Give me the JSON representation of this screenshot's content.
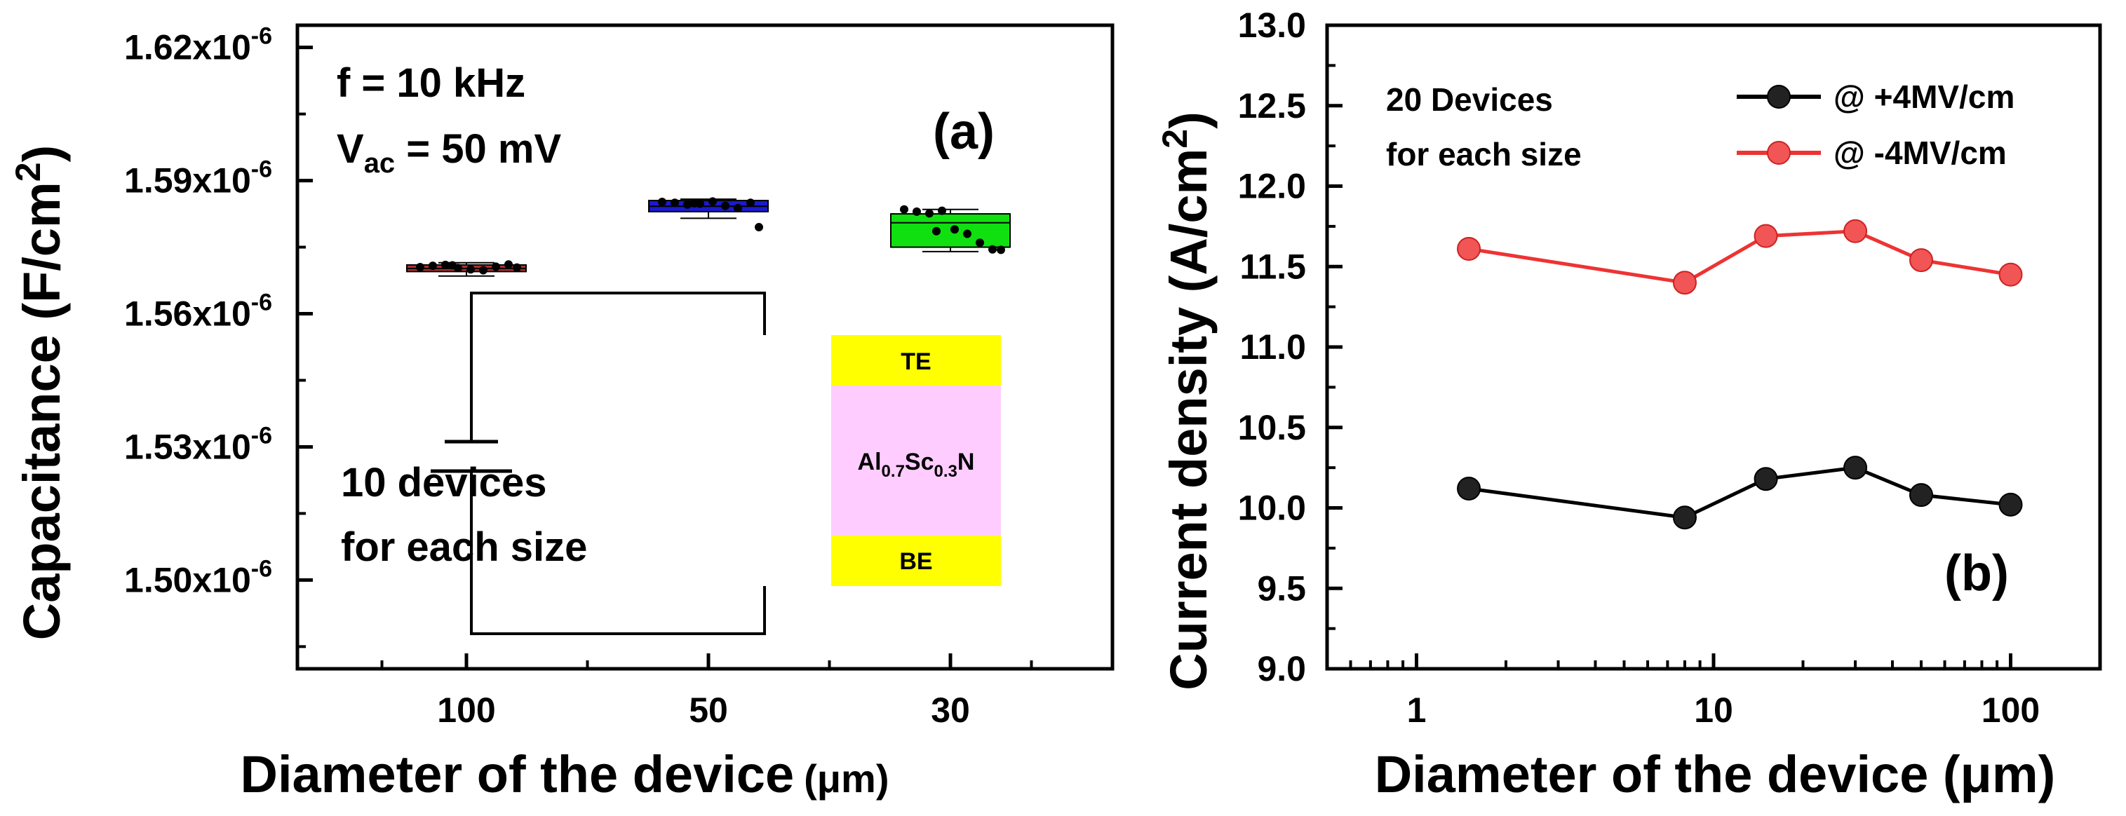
{
  "chart_data": [
    {
      "type": "box",
      "panel_label": "(a)",
      "title": "",
      "xlabel": "Diameter of the device",
      "xlabel_unit": "(μm)",
      "ylabel": "Capacitance (F/cm",
      "ylabel_sup": "2",
      "ylabel_close": ")",
      "ylim": [
        1.48e-06,
        1.625e-06
      ],
      "categories": [
        "100",
        "50",
        "30"
      ],
      "box_colors": [
        "#b03030",
        "#1a1ad0",
        "#10e010"
      ],
      "yticks": [
        {
          "value": 1.5e-06,
          "base": "1.50x10",
          "exp": "-6"
        },
        {
          "value": 1.53e-06,
          "base": "1.53x10",
          "exp": "-6"
        },
        {
          "value": 1.56e-06,
          "base": "1.56x10",
          "exp": "-6"
        },
        {
          "value": 1.59e-06,
          "base": "1.59x10",
          "exp": "-6"
        },
        {
          "value": 1.62e-06,
          "base": "1.62x10",
          "exp": "-6"
        }
      ],
      "boxes": [
        {
          "q1": 1.5695e-06,
          "median": 1.5702e-06,
          "q3": 1.571e-06,
          "whisker_low": 1.5685e-06,
          "whisker_high": 1.5715e-06,
          "points": [
            1.5705,
            1.5708,
            1.571,
            1.5703,
            1.57,
            1.5698,
            1.5706,
            1.5711,
            1.5704,
            1.5709
          ]
        },
        {
          "q1": 1.583e-06,
          "median": 1.5842e-06,
          "q3": 1.5855e-06,
          "whisker_low": 1.5815e-06,
          "whisker_high": 1.5858e-06,
          "points": [
            1.5852,
            1.585,
            1.5846,
            1.5848,
            1.5853,
            1.5843,
            1.5838,
            1.585,
            1.5795,
            1.5849
          ]
        },
        {
          "q1": 1.575e-06,
          "median": 1.5805e-06,
          "q3": 1.5825e-06,
          "whisker_low": 1.574e-06,
          "whisker_high": 1.5835e-06,
          "points": [
            1.5835,
            1.583,
            1.5826,
            1.5832,
            1.579,
            1.578,
            1.576,
            1.5745,
            1.5744,
            1.5786
          ]
        }
      ],
      "annotations": {
        "freq": "f = 10 kHz",
        "vac_main": "V",
        "vac_sub": "ac",
        "vac_rest": " = 50 mV",
        "devices_line1": "10 devices",
        "devices_line2": "for each size"
      },
      "inset": {
        "top_layer": "TE",
        "middle_layer_parts": [
          "Al",
          "0.7",
          "Sc",
          "0.3",
          "N"
        ],
        "bottom_layer": "BE",
        "layer_colors": {
          "electrode": "#ffff00",
          "dielectric": "#ffccff"
        }
      }
    },
    {
      "type": "line",
      "panel_label": "(b)",
      "title": "",
      "xlabel": "Diameter of the device (μm)",
      "ylabel": "Current density (A/cm",
      "ylabel_sup": "2",
      "ylabel_close": ")",
      "xscale": "log",
      "xlim": [
        0.5,
        200
      ],
      "ylim": [
        9.0,
        13.0
      ],
      "xticks": [
        {
          "value": 1,
          "label": "1"
        },
        {
          "value": 10,
          "label": "10"
        },
        {
          "value": 100,
          "label": "100"
        }
      ],
      "yticks": [
        "9.0",
        "9.5",
        "10.0",
        "10.5",
        "11.0",
        "11.5",
        "12.0",
        "12.5",
        "13.0"
      ],
      "x": [
        1.5,
        8,
        15,
        30,
        50,
        100
      ],
      "series": [
        {
          "name": "@ +4MV/cm",
          "color": "#000000",
          "values": [
            10.12,
            9.94,
            10.18,
            10.25,
            10.08,
            10.02
          ]
        },
        {
          "name": "@ -4MV/cm",
          "color": "#ee3333",
          "values": [
            11.61,
            11.4,
            11.69,
            11.72,
            11.54,
            11.45
          ]
        }
      ],
      "annotations": {
        "line1": "20 Devices",
        "line2": "for each size"
      },
      "legend_position": "top-right"
    }
  ]
}
